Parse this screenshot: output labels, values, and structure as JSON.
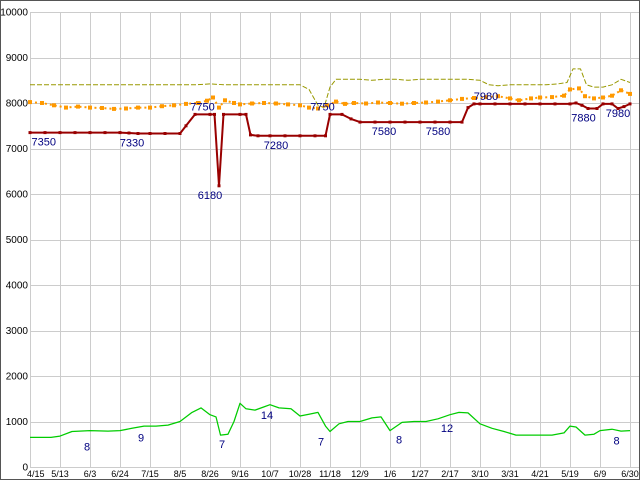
{
  "chart": {
    "background": "#ffffff",
    "border_color": "#555555",
    "grid_color": "#cccccc",
    "axis_label_color": "#000000",
    "data_label_color": "#000080"
  },
  "chart_data": {
    "type": "line",
    "title": "",
    "xlabel": "",
    "ylabel": "",
    "grid": true,
    "legend": "none",
    "ylim": [
      0,
      10000
    ],
    "y_tick_interval": 1000,
    "y_tick_labels": [
      "0",
      "1000",
      "2000",
      "3000",
      "4000",
      "5000",
      "6000",
      "7000",
      "8000",
      "9000",
      "10000"
    ],
    "x_tick_labels": [
      "4/15",
      "5/13",
      "6/3",
      "6/24",
      "7/15",
      "8/5",
      "8/26",
      "9/16",
      "10/7",
      "10/28",
      "11/18",
      "12/9",
      "1/6",
      "1/27",
      "2/17",
      "3/10",
      "3/31",
      "4/21",
      "5/19",
      "6/9",
      "6/30"
    ],
    "series": [
      {
        "name": "high-dashed-olive",
        "color": "#999900",
        "dash": "5,2",
        "width": 1,
        "markers": false,
        "points": [
          [
            0,
            8400
          ],
          [
            1,
            8400
          ],
          [
            2,
            8400
          ],
          [
            3,
            8400
          ],
          [
            4,
            8400
          ],
          [
            5,
            8400
          ],
          [
            5.5,
            8400
          ],
          [
            6,
            8420
          ],
          [
            6.5,
            8400
          ],
          [
            7,
            8400
          ],
          [
            7.5,
            8400
          ],
          [
            8,
            8400
          ],
          [
            8.5,
            8400
          ],
          [
            9,
            8400
          ],
          [
            9.3,
            8300
          ],
          [
            9.6,
            7950
          ],
          [
            9.8,
            7900
          ],
          [
            10,
            8350
          ],
          [
            10.2,
            8520
          ],
          [
            10.6,
            8520
          ],
          [
            11,
            8520
          ],
          [
            11.4,
            8500
          ],
          [
            11.8,
            8520
          ],
          [
            12.2,
            8520
          ],
          [
            12.6,
            8500
          ],
          [
            13,
            8520
          ],
          [
            13.4,
            8520
          ],
          [
            13.8,
            8520
          ],
          [
            14.2,
            8520
          ],
          [
            14.6,
            8520
          ],
          [
            15,
            8500
          ],
          [
            15.3,
            8400
          ],
          [
            15.6,
            8380
          ],
          [
            16,
            8400
          ],
          [
            16.4,
            8400
          ],
          [
            16.8,
            8400
          ],
          [
            17.2,
            8400
          ],
          [
            17.6,
            8420
          ],
          [
            17.9,
            8450
          ],
          [
            18.1,
            8750
          ],
          [
            18.35,
            8750
          ],
          [
            18.55,
            8400
          ],
          [
            18.8,
            8350
          ],
          [
            19.1,
            8350
          ],
          [
            19.4,
            8400
          ],
          [
            19.7,
            8520
          ],
          [
            20,
            8450
          ]
        ]
      },
      {
        "name": "mid-dashed-orange",
        "color": "#ff9900",
        "dash": "2,3",
        "width": 2,
        "markers": true,
        "marker_size": 4,
        "points": [
          [
            0,
            8020
          ],
          [
            0.4,
            8000
          ],
          [
            0.8,
            7950
          ],
          [
            1.2,
            7900
          ],
          [
            1.6,
            7920
          ],
          [
            2,
            7900
          ],
          [
            2.4,
            7890
          ],
          [
            2.8,
            7870
          ],
          [
            3.2,
            7880
          ],
          [
            3.6,
            7900
          ],
          [
            4,
            7900
          ],
          [
            4.4,
            7930
          ],
          [
            4.8,
            7950
          ],
          [
            5.2,
            7980
          ],
          [
            5.6,
            8000
          ],
          [
            5.9,
            8050
          ],
          [
            6.1,
            8120
          ],
          [
            6.3,
            7900
          ],
          [
            6.5,
            8060
          ],
          [
            6.8,
            8000
          ],
          [
            7,
            7970
          ],
          [
            7.4,
            7990
          ],
          [
            7.8,
            8000
          ],
          [
            8.2,
            7990
          ],
          [
            8.6,
            7970
          ],
          [
            9,
            7950
          ],
          [
            9.3,
            7900
          ],
          [
            9.6,
            7880
          ],
          [
            9.9,
            7950
          ],
          [
            10.2,
            8030
          ],
          [
            10.5,
            7980
          ],
          [
            10.8,
            8000
          ],
          [
            11.2,
            7990
          ],
          [
            11.6,
            8010
          ],
          [
            12,
            8000
          ],
          [
            12.4,
            7985
          ],
          [
            12.8,
            8000
          ],
          [
            13.2,
            8010
          ],
          [
            13.6,
            8030
          ],
          [
            14,
            8060
          ],
          [
            14.4,
            8090
          ],
          [
            14.8,
            8110
          ],
          [
            15.2,
            8130
          ],
          [
            15.6,
            8150
          ],
          [
            16,
            8100
          ],
          [
            16.3,
            8060
          ],
          [
            16.7,
            8100
          ],
          [
            17,
            8120
          ],
          [
            17.4,
            8130
          ],
          [
            17.8,
            8160
          ],
          [
            18,
            8300
          ],
          [
            18.3,
            8320
          ],
          [
            18.5,
            8150
          ],
          [
            18.8,
            8100
          ],
          [
            19.1,
            8120
          ],
          [
            19.4,
            8160
          ],
          [
            19.7,
            8280
          ],
          [
            20,
            8200
          ]
        ]
      },
      {
        "name": "low-solid-red",
        "color": "#990000",
        "dash": "",
        "width": 2,
        "markers": true,
        "marker_size": 3,
        "points": [
          [
            0,
            7350
          ],
          [
            0.5,
            7350
          ],
          [
            1,
            7350
          ],
          [
            1.5,
            7350
          ],
          [
            2,
            7350
          ],
          [
            2.5,
            7350
          ],
          [
            3,
            7350
          ],
          [
            3.3,
            7340
          ],
          [
            3.6,
            7330
          ],
          [
            4,
            7330
          ],
          [
            4.5,
            7330
          ],
          [
            5,
            7330
          ],
          [
            5.2,
            7500
          ],
          [
            5.5,
            7750
          ],
          [
            6,
            7750
          ],
          [
            6.15,
            7750
          ],
          [
            6.3,
            6180
          ],
          [
            6.45,
            7750
          ],
          [
            7,
            7750
          ],
          [
            7.2,
            7750
          ],
          [
            7.35,
            7300
          ],
          [
            7.6,
            7280
          ],
          [
            8,
            7280
          ],
          [
            8.5,
            7280
          ],
          [
            9,
            7280
          ],
          [
            9.5,
            7280
          ],
          [
            9.85,
            7280
          ],
          [
            10,
            7750
          ],
          [
            10.4,
            7750
          ],
          [
            10.7,
            7650
          ],
          [
            11,
            7580
          ],
          [
            11.5,
            7580
          ],
          [
            12,
            7580
          ],
          [
            12.5,
            7580
          ],
          [
            13,
            7580
          ],
          [
            13.5,
            7580
          ],
          [
            14,
            7580
          ],
          [
            14.4,
            7580
          ],
          [
            14.6,
            7900
          ],
          [
            14.8,
            7980
          ],
          [
            15,
            7980
          ],
          [
            15.5,
            7980
          ],
          [
            16,
            7980
          ],
          [
            16.5,
            7980
          ],
          [
            17,
            7980
          ],
          [
            17.5,
            7980
          ],
          [
            18,
            7980
          ],
          [
            18.2,
            8000
          ],
          [
            18.4,
            7950
          ],
          [
            18.6,
            7880
          ],
          [
            18.9,
            7880
          ],
          [
            19.1,
            7980
          ],
          [
            19.4,
            7980
          ],
          [
            19.6,
            7880
          ],
          [
            19.8,
            7920
          ],
          [
            20,
            7980
          ]
        ]
      },
      {
        "name": "green-count-line",
        "color": "#00cc00",
        "dash": "",
        "width": 1.25,
        "markers": false,
        "points": [
          [
            0,
            650
          ],
          [
            0.7,
            650
          ],
          [
            1,
            680
          ],
          [
            1.4,
            780
          ],
          [
            2,
            800
          ],
          [
            2.6,
            790
          ],
          [
            3,
            800
          ],
          [
            3.4,
            850
          ],
          [
            3.8,
            900
          ],
          [
            4.2,
            900
          ],
          [
            4.6,
            920
          ],
          [
            5,
            1000
          ],
          [
            5.4,
            1200
          ],
          [
            5.7,
            1300
          ],
          [
            6,
            1150
          ],
          [
            6.2,
            1100
          ],
          [
            6.35,
            700
          ],
          [
            6.6,
            720
          ],
          [
            6.8,
            1000
          ],
          [
            7,
            1400
          ],
          [
            7.2,
            1280
          ],
          [
            7.5,
            1250
          ],
          [
            7.8,
            1320
          ],
          [
            8,
            1370
          ],
          [
            8.3,
            1300
          ],
          [
            8.7,
            1280
          ],
          [
            9,
            1120
          ],
          [
            9.3,
            1160
          ],
          [
            9.6,
            1200
          ],
          [
            9.85,
            900
          ],
          [
            10,
            780
          ],
          [
            10.3,
            950
          ],
          [
            10.6,
            1000
          ],
          [
            11,
            1000
          ],
          [
            11.4,
            1080
          ],
          [
            11.7,
            1100
          ],
          [
            12,
            800
          ],
          [
            12.4,
            980
          ],
          [
            12.8,
            1000
          ],
          [
            13.2,
            1000
          ],
          [
            13.6,
            1060
          ],
          [
            14,
            1150
          ],
          [
            14.3,
            1200
          ],
          [
            14.6,
            1190
          ],
          [
            15,
            950
          ],
          [
            15.4,
            850
          ],
          [
            15.8,
            780
          ],
          [
            16.2,
            700
          ],
          [
            16.6,
            700
          ],
          [
            17,
            700
          ],
          [
            17.4,
            700
          ],
          [
            17.8,
            750
          ],
          [
            18,
            900
          ],
          [
            18.2,
            880
          ],
          [
            18.5,
            700
          ],
          [
            18.8,
            720
          ],
          [
            19,
            800
          ],
          [
            19.4,
            830
          ],
          [
            19.7,
            790
          ],
          [
            20,
            800
          ]
        ]
      }
    ],
    "point_labels": [
      {
        "series": "low-solid-red",
        "x": 0.05,
        "value": 7350,
        "text": "7350",
        "dy": 13,
        "anchor": "start"
      },
      {
        "series": "low-solid-red",
        "x": 3.4,
        "value": 7330,
        "text": "7330",
        "dy": 13,
        "anchor": "middle"
      },
      {
        "series": "low-solid-red",
        "x": 5.75,
        "value": 7750,
        "text": "7750",
        "dy": -4,
        "anchor": "middle"
      },
      {
        "series": "low-solid-red",
        "x": 6.0,
        "value": 6180,
        "text": "6180",
        "dy": 13,
        "anchor": "middle"
      },
      {
        "series": "low-solid-red",
        "x": 8.2,
        "value": 7280,
        "text": "7280",
        "dy": 13,
        "anchor": "middle"
      },
      {
        "series": "low-solid-red",
        "x": 9.75,
        "value": 7750,
        "text": "7750",
        "dy": -4,
        "anchor": "middle"
      },
      {
        "series": "low-solid-red",
        "x": 11.8,
        "value": 7580,
        "text": "7580",
        "dy": 13,
        "anchor": "middle"
      },
      {
        "series": "low-solid-red",
        "x": 13.6,
        "value": 7580,
        "text": "7580",
        "dy": 13,
        "anchor": "middle"
      },
      {
        "series": "low-solid-red",
        "x": 15.2,
        "value": 7980,
        "text": "7980",
        "dy": -4,
        "anchor": "middle"
      },
      {
        "series": "low-solid-red",
        "x": 18.45,
        "value": 7880,
        "text": "7880",
        "dy": 13,
        "anchor": "middle"
      },
      {
        "series": "low-solid-red",
        "x": 19.6,
        "value": 7980,
        "text": "7980",
        "dy": 13,
        "anchor": "middle"
      },
      {
        "series": "green-count-line",
        "x": 1.9,
        "value": 650,
        "text": "8",
        "dy": 13,
        "anchor": "middle"
      },
      {
        "series": "green-count-line",
        "x": 3.7,
        "value": 850,
        "text": "9",
        "dy": 13,
        "anchor": "middle"
      },
      {
        "series": "green-count-line",
        "x": 6.4,
        "value": 700,
        "text": "7",
        "dy": 13,
        "anchor": "middle"
      },
      {
        "series": "green-count-line",
        "x": 7.9,
        "value": 1320,
        "text": "14",
        "dy": 12,
        "anchor": "middle"
      },
      {
        "series": "green-count-line",
        "x": 9.7,
        "value": 760,
        "text": "7",
        "dy": 13,
        "anchor": "middle"
      },
      {
        "series": "green-count-line",
        "x": 12.3,
        "value": 800,
        "text": "8",
        "dy": 13,
        "anchor": "middle"
      },
      {
        "series": "green-count-line",
        "x": 13.9,
        "value": 1030,
        "text": "12",
        "dy": 12,
        "anchor": "middle"
      },
      {
        "series": "green-count-line",
        "x": 19.55,
        "value": 780,
        "text": "8",
        "dy": 13,
        "anchor": "middle"
      }
    ]
  }
}
